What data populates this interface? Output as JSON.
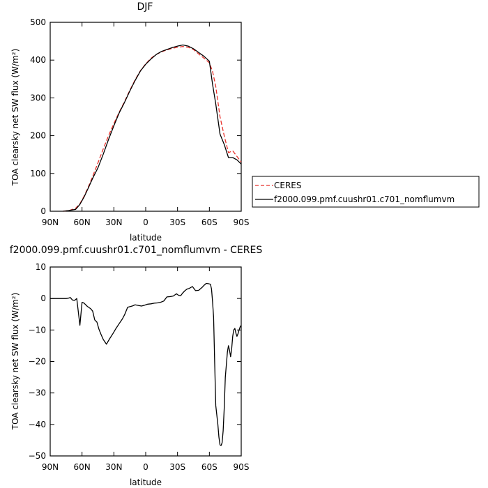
{
  "chart_data": [
    {
      "type": "line",
      "title": "DJF",
      "xlabel": "latitude",
      "ylabel": "TOA clearsky net SW flux (W/m²)",
      "xlim": [
        -90,
        90
      ],
      "ylim": [
        0,
        500
      ],
      "xticks": [
        -90,
        -60,
        -30,
        0,
        30,
        60,
        90
      ],
      "xtick_labels": [
        "90N",
        "60N",
        "30N",
        "0",
        "30S",
        "60S",
        "90S"
      ],
      "yticks": [
        0,
        100,
        200,
        300,
        400,
        500
      ],
      "ytick_labels": [
        "0",
        "100",
        "200",
        "300",
        "400",
        "500"
      ],
      "legend_position": "outside-right",
      "series": [
        {
          "name": "CERES",
          "color": "#e8312b",
          "style": "dashed",
          "x": [
            -78,
            -72,
            -66,
            -62,
            -58,
            -54,
            -50,
            -45,
            -40,
            -35,
            -30,
            -25,
            -20,
            -15,
            -10,
            -5,
            0,
            5,
            10,
            15,
            20,
            25,
            30,
            35,
            40,
            45,
            50,
            55,
            60,
            63,
            66,
            70,
            74,
            78,
            82,
            86,
            90
          ],
          "y": [
            0,
            2,
            8,
            20,
            40,
            65,
            92,
            128,
            165,
            200,
            232,
            262,
            290,
            320,
            348,
            372,
            390,
            405,
            415,
            422,
            427,
            431,
            434,
            436,
            434,
            428,
            416,
            405,
            393,
            370,
            330,
            250,
            200,
            155,
            160,
            145,
            130
          ]
        },
        {
          "name": "f2000.099.pmf.cuushr01.c701_nomflumvm",
          "color": "#000000",
          "style": "solid",
          "x": [
            -78,
            -72,
            -66,
            -62,
            -58,
            -54,
            -50,
            -45,
            -40,
            -35,
            -30,
            -25,
            -20,
            -15,
            -10,
            -5,
            0,
            5,
            10,
            15,
            20,
            25,
            30,
            35,
            40,
            45,
            50,
            55,
            60,
            63,
            66,
            70,
            74,
            78,
            82,
            86,
            90
          ],
          "y": [
            0,
            2,
            5,
            18,
            38,
            62,
            87,
            115,
            151,
            190,
            226,
            260,
            288,
            318,
            346,
            371,
            389,
            403,
            415,
            423,
            428,
            433,
            437,
            440,
            437,
            430,
            420,
            410,
            397,
            336,
            284,
            204,
            177,
            142,
            142,
            136,
            125
          ]
        }
      ]
    },
    {
      "type": "line",
      "title": "f2000.099.pmf.cuushr01.c701_nomflumvm - CERES",
      "xlabel": "latitude",
      "ylabel": "TOA clearsky net SW flux (W/m²)",
      "xlim": [
        -90,
        90
      ],
      "ylim": [
        -50,
        10
      ],
      "xticks": [
        -90,
        -60,
        -30,
        0,
        30,
        60,
        90
      ],
      "xtick_labels": [
        "90N",
        "60N",
        "30N",
        "0",
        "30S",
        "60S",
        "90S"
      ],
      "yticks": [
        -50,
        -40,
        -30,
        -20,
        -10,
        0,
        10
      ],
      "ytick_labels": [
        "−50",
        "−40",
        "−30",
        "−20",
        "−10",
        "0",
        "10"
      ],
      "series": [
        {
          "name": "",
          "color": "#000000",
          "style": "solid",
          "x": [
            -90,
            -80,
            -75,
            -73,
            -71,
            -69,
            -67,
            -65,
            -62,
            -60,
            -58,
            -55,
            -52,
            -50,
            -48,
            -46,
            -44,
            -42,
            -40,
            -37,
            -34,
            -31,
            -28,
            -25,
            -22,
            -20,
            -17,
            -14,
            -12,
            -10,
            -7,
            -4,
            -1,
            2,
            5,
            8,
            11,
            14,
            17,
            20,
            23,
            26,
            29,
            31,
            33,
            35,
            37,
            39,
            41,
            44,
            47,
            50,
            53,
            55,
            57,
            59,
            61,
            62,
            63,
            64,
            65,
            66,
            67,
            68,
            69,
            70,
            71,
            72,
            73,
            74,
            75,
            76,
            77,
            78,
            79,
            80,
            81,
            82,
            83,
            84,
            85,
            86,
            87,
            88,
            89,
            90
          ],
          "y": [
            0,
            0,
            0,
            0.1,
            0.3,
            -0.5,
            -0.6,
            0,
            -8.5,
            -1.2,
            -1.5,
            -2.5,
            -3.2,
            -4,
            -6.8,
            -7.5,
            -9.8,
            -11.5,
            -13,
            -14.5,
            -12.8,
            -11.2,
            -9.5,
            -8,
            -6.5,
            -5.2,
            -2.8,
            -2.5,
            -2.3,
            -2,
            -2.2,
            -2.4,
            -2.1,
            -1.8,
            -1.7,
            -1.5,
            -1.4,
            -1.2,
            -0.8,
            0.5,
            0.6,
            0.8,
            1.5,
            1.0,
            0.9,
            1.8,
            2.5,
            3.0,
            3.2,
            3.8,
            2.5,
            2.6,
            3.5,
            4.2,
            4.8,
            4.7,
            4.5,
            3.0,
            -1.0,
            -6.0,
            -20.0,
            -34.0,
            -37.0,
            -40.0,
            -44.0,
            -46.5,
            -46.7,
            -45.8,
            -42.0,
            -35.0,
            -25.0,
            -21.0,
            -17.0,
            -15.0,
            -16.5,
            -18.5,
            -16.0,
            -12.0,
            -10.0,
            -9.5,
            -11.0,
            -12.0,
            -11.2,
            -10.0,
            -9.0,
            -8.5
          ]
        }
      ]
    }
  ]
}
